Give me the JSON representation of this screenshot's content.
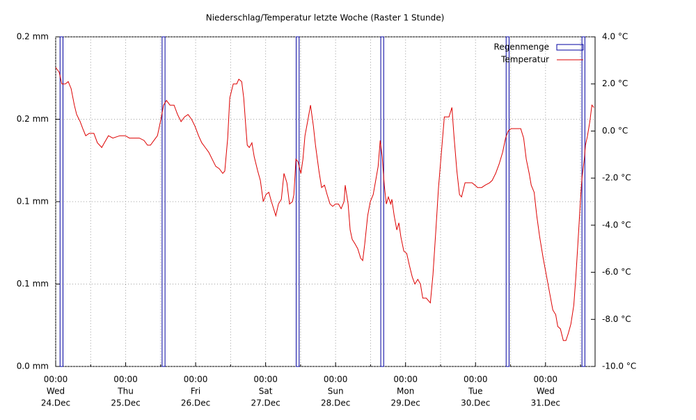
{
  "chart_data": {
    "type": "line",
    "title": "Niederschlag/Temperatur letzte Woche (Raster 1 Stunde)",
    "xlim": [
      0,
      185
    ],
    "xticks": [
      {
        "value": 0,
        "label": [
          "00:00",
          "Wed",
          "24.Dec"
        ]
      },
      {
        "value": 24,
        "label": [
          "00:00",
          "Thu",
          "25.Dec"
        ]
      },
      {
        "value": 48,
        "label": [
          "00:00",
          "Fri",
          "26.Dec"
        ]
      },
      {
        "value": 72,
        "label": [
          "00:00",
          "Sat",
          "27.Dec"
        ]
      },
      {
        "value": 96,
        "label": [
          "00:00",
          "Sun",
          "28.Dec"
        ]
      },
      {
        "value": 120,
        "label": [
          "00:00",
          "Mon",
          "29.Dec"
        ]
      },
      {
        "value": 144,
        "label": [
          "00:00",
          "Tue",
          "30.Dec"
        ]
      },
      {
        "value": 168,
        "label": [
          "00:00",
          "Wed",
          "31.Dec"
        ]
      }
    ],
    "xminorticks": [
      12,
      36,
      60,
      84,
      108,
      132,
      156,
      180
    ],
    "ylim": [
      0,
      0.2
    ],
    "yticks": [
      {
        "value": 0,
        "label": "0.0 mm"
      },
      {
        "value": 0.05,
        "label": "0.1 mm"
      },
      {
        "value": 0.1,
        "label": "0.1 mm"
      },
      {
        "value": 0.15,
        "label": "0.2 mm"
      },
      {
        "value": 0.2,
        "label": "0.2 mm"
      }
    ],
    "y2lim": [
      -10,
      4
    ],
    "y2ticks": [
      {
        "value": -10,
        "label": "-10.0 °C"
      },
      {
        "value": -8,
        "label": "-8.0 °C"
      },
      {
        "value": -6,
        "label": "-6.0 °C"
      },
      {
        "value": -4,
        "label": "-4.0 °C"
      },
      {
        "value": -2,
        "label": "-2.0 °C"
      },
      {
        "value": 0,
        "label": "0.0 °C"
      },
      {
        "value": 2,
        "label": "2.0 °C"
      },
      {
        "value": 4,
        "label": "4.0 °C"
      }
    ],
    "grid": true,
    "legend": "top-right",
    "series": [
      {
        "name": "Regenmenge",
        "type": "bar",
        "color": "#0000a0",
        "bar_width": 1,
        "x": [
          2,
          37,
          83,
          112,
          155,
          181
        ],
        "values": [
          0.2,
          0.2,
          0.2,
          0.2,
          0.2,
          0.2
        ]
      },
      {
        "name": "Temperatur",
        "type": "line",
        "color": "#dd0000",
        "axis": "y2",
        "x": [
          0,
          1.2,
          2.1,
          3.3,
          4.3,
          5.3,
          6.4,
          7.2,
          8.4,
          9.3,
          10.3,
          11.5,
          13.1,
          14.3,
          15.8,
          16.7,
          18.1,
          19.6,
          22,
          23.9,
          25.3,
          28.7,
          30.3,
          31.5,
          32.5,
          33.7,
          34.9,
          36.1,
          37,
          38,
          39.2,
          40.6,
          41.8,
          43,
          44.2,
          45.4,
          46.6,
          47.8,
          49,
          50.1,
          51.3,
          52.5,
          53.7,
          54.9,
          56.1,
          57.3,
          58,
          59,
          59.7,
          60.9,
          62.1,
          62.8,
          63.8,
          64.5,
          65.2,
          65.7,
          66.4,
          67.3,
          68.1,
          69.3,
          70.2,
          71.2,
          72.1,
          73.1,
          74,
          75.5,
          76.4,
          77.4,
          78.3,
          79.3,
          80.2,
          81.2,
          81.7,
          82.4,
          83.1,
          84.1,
          84.8,
          85.5,
          86.4,
          87.4,
          88.4,
          89.1,
          90.3,
          91.2,
          92.2,
          93.1,
          94.1,
          95,
          96,
          97,
          97.9,
          98.9,
          99.3,
          100.3,
          101,
          101.7,
          102.7,
          103.6,
          104.6,
          105.3,
          106,
          107,
          107.9,
          108.9,
          109.9,
          110.6,
          111.3,
          112,
          112.7,
          113.4,
          114.1,
          114.9,
          115.3,
          116.1,
          117,
          117.7,
          118.4,
          119.4,
          120.4,
          121.3,
          122.3,
          123.2,
          124.2,
          125.1,
          125.9,
          127.1,
          128.5,
          129.4,
          130.4,
          131.3,
          132.5,
          133.3,
          134.9,
          135.9,
          136.6,
          137.6,
          138.5,
          139.2,
          140.4,
          142.8,
          143.8,
          144.7,
          146.1,
          147.3,
          148.8,
          149.7,
          150.9,
          152.1,
          153.3,
          154.3,
          155.2,
          156.2,
          159.5,
          160.5,
          161.4,
          162.4,
          163.1,
          164.1,
          165,
          166,
          167.2,
          168.4,
          169.6,
          170.5,
          171.5,
          172.2,
          173.1,
          174.1,
          175,
          175.8,
          176.7,
          177.7,
          178.4,
          179.1,
          180.1,
          180.5,
          181.3,
          181.7,
          182.4,
          183.2,
          183.9,
          184.6
        ],
        "values": [
          2.7,
          2.5,
          2.0,
          2.0,
          2.1,
          1.8,
          1.1,
          0.7,
          0.4,
          0.1,
          -0.2,
          -0.1,
          -0.1,
          -0.5,
          -0.7,
          -0.5,
          -0.2,
          -0.3,
          -0.2,
          -0.2,
          -0.3,
          -0.3,
          -0.4,
          -0.6,
          -0.6,
          -0.4,
          -0.2,
          0.5,
          1.1,
          1.3,
          1.1,
          1.1,
          0.7,
          0.4,
          0.6,
          0.7,
          0.5,
          0.2,
          -0.2,
          -0.5,
          -0.7,
          -0.9,
          -1.2,
          -1.5,
          -1.6,
          -1.8,
          -1.7,
          -0.3,
          1.4,
          2.0,
          2.0,
          2.2,
          2.1,
          1.4,
          0.2,
          -0.6,
          -0.7,
          -0.5,
          -1.1,
          -1.7,
          -2.1,
          -3.0,
          -2.7,
          -2.6,
          -3.0,
          -3.6,
          -3.1,
          -2.9,
          -1.8,
          -2.2,
          -3.1,
          -3.0,
          -2.7,
          -1.2,
          -1.3,
          -1.8,
          -1.2,
          -0.2,
          0.4,
          1.1,
          0.2,
          -0.6,
          -1.7,
          -2.4,
          -2.3,
          -2.7,
          -3.1,
          -3.2,
          -3.1,
          -3.1,
          -3.3,
          -3.0,
          -2.3,
          -3.1,
          -4.2,
          -4.6,
          -4.8,
          -5.0,
          -5.4,
          -5.5,
          -4.8,
          -3.6,
          -3.0,
          -2.7,
          -2.0,
          -1.5,
          -0.4,
          -1.1,
          -2.3,
          -3.1,
          -2.8,
          -3.1,
          -2.9,
          -3.6,
          -4.2,
          -3.9,
          -4.5,
          -5.1,
          -5.2,
          -5.7,
          -6.2,
          -6.5,
          -6.3,
          -6.5,
          -7.1,
          -7.1,
          -7.3,
          -6.1,
          -4.2,
          -2.4,
          -0.6,
          0.6,
          0.6,
          1.0,
          -0.2,
          -1.7,
          -2.7,
          -2.8,
          -2.2,
          -2.2,
          -2.3,
          -2.4,
          -2.4,
          -2.3,
          -2.2,
          -2.1,
          -1.8,
          -1.4,
          -0.9,
          -0.3,
          0.0,
          0.1,
          0.1,
          -0.3,
          -1.2,
          -1.8,
          -2.3,
          -2.6,
          -3.6,
          -4.5,
          -5.4,
          -6.2,
          -7.0,
          -7.6,
          -7.8,
          -8.3,
          -8.4,
          -8.9,
          -8.9,
          -8.6,
          -8.2,
          -7.4,
          -6.2,
          -4.8,
          -2.7,
          -2.0,
          -1.2,
          -0.6,
          -0.2,
          0.4,
          1.1,
          1.0
        ]
      }
    ]
  }
}
